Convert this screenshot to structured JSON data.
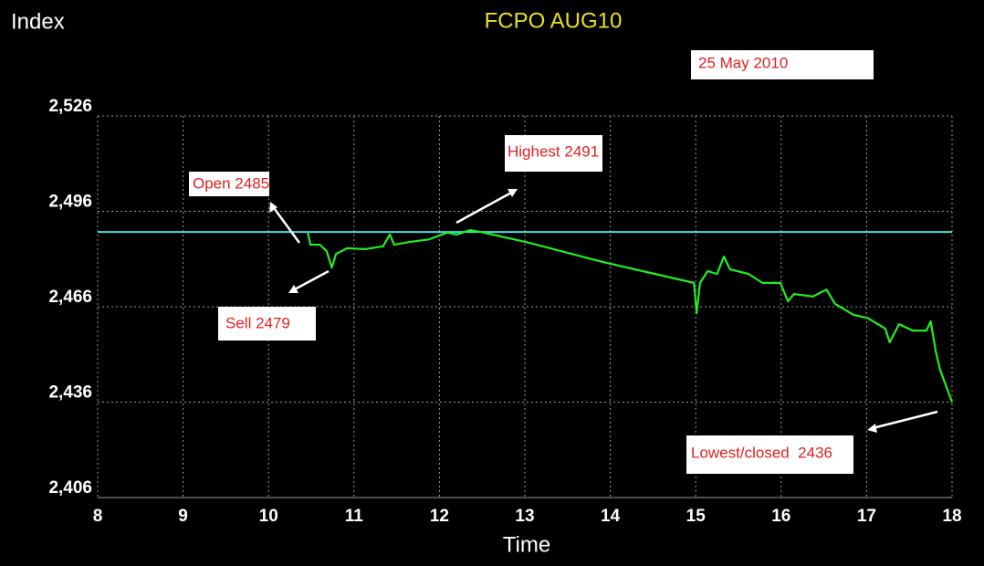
{
  "chart_data": {
    "type": "line",
    "title": "FCPO AUG10",
    "y_label": "Index",
    "x_label": "Time",
    "annotations": [
      "25 May 2010",
      "Open 2485",
      "Highest 2491",
      "Sell 2479",
      "Lowest/closed  2436"
    ],
    "xlim": [
      8,
      18
    ],
    "xticks": [
      8,
      9,
      10,
      11,
      12,
      13,
      14,
      15,
      16,
      17,
      18
    ],
    "ylim": [
      2406,
      2526
    ],
    "yticks": [
      {
        "value": 2406,
        "label": "2,406"
      },
      {
        "value": 2436,
        "label": "2,436"
      },
      {
        "value": 2466,
        "label": "2,466"
      },
      {
        "value": 2496,
        "label": "2,496"
      },
      {
        "value": 2526,
        "label": "2,526"
      }
    ],
    "grid": true,
    "reference_line": 2489.5,
    "reference_color": "#40e0e0",
    "series": [
      {
        "color": "#22ee22",
        "x": [
          10.46,
          10.49,
          10.6,
          10.68,
          10.74,
          10.79,
          10.92,
          11.13,
          11.34,
          11.42,
          11.47,
          11.66,
          11.88,
          12.09,
          12.2,
          12.36,
          12.52,
          13.05,
          13.91,
          14.98,
          15.01,
          15.05,
          15.14,
          15.25,
          15.33,
          15.4,
          15.62,
          15.78,
          15.99,
          16.08,
          16.15,
          16.37,
          16.53,
          16.63,
          16.85,
          17.01,
          17.22,
          17.27,
          17.38,
          17.54,
          17.7,
          17.75,
          17.81,
          17.86,
          18.0
        ],
        "values": [
          2489.3,
          2485.5,
          2485.5,
          2483.5,
          2478.3,
          2482.6,
          2484.4,
          2484.1,
          2485.0,
          2488.7,
          2485.5,
          2486.4,
          2487.2,
          2489.3,
          2488.7,
          2490.1,
          2489.3,
          2486.1,
          2480.1,
          2473.5,
          2464.0,
          2473.5,
          2477.2,
          2476.3,
          2481.8,
          2477.8,
          2476.3,
          2473.5,
          2473.5,
          2467.7,
          2470.0,
          2469.2,
          2471.4,
          2466.9,
          2463.4,
          2462.5,
          2459.1,
          2454.8,
          2460.5,
          2458.5,
          2458.5,
          2461.4,
          2451.9,
          2446.2,
          2436.0
        ]
      }
    ]
  }
}
